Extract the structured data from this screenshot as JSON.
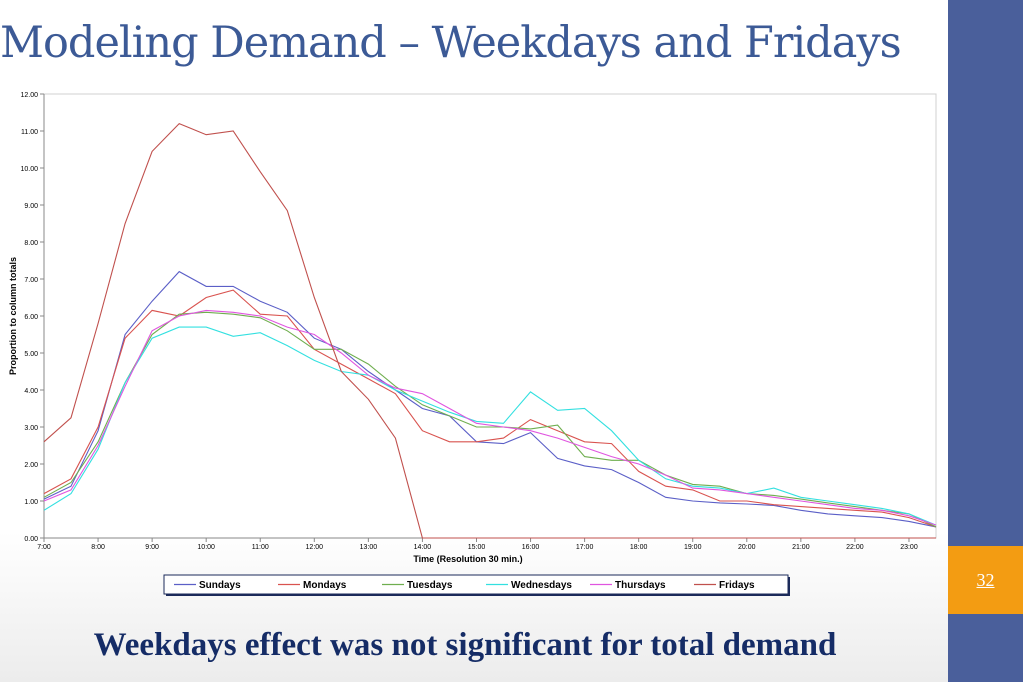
{
  "slide": {
    "title": "Modeling Demand – Weekdays and Fridays",
    "subtitle": "Weekdays effect was not significant for total demand",
    "page_number": "32",
    "colors": {
      "accent_bar": "#4a5f9b",
      "page_box": "#f39c12",
      "title": "#3c5a96",
      "subtitle": "#152c66"
    }
  },
  "chart_data": {
    "type": "line",
    "xlabel": "Time (Resolution  30 min.)",
    "ylabel": "Proportion to column totals",
    "ylim": [
      0,
      12
    ],
    "yticks": [
      "0.00",
      "1.00",
      "2.00",
      "3.00",
      "4.00",
      "5.00",
      "6.00",
      "7.00",
      "8.00",
      "9.00",
      "10.00",
      "11.00",
      "12.00"
    ],
    "xticks": [
      "7:00",
      "8:00",
      "9:00",
      "10:00",
      "11:00",
      "12:00",
      "13:00",
      "14:00",
      "15:00",
      "16:00",
      "17:00",
      "18:00",
      "19:00",
      "20:00",
      "21:00",
      "22:00",
      "23:00"
    ],
    "x": [
      "7:00",
      "7:30",
      "8:00",
      "8:30",
      "9:00",
      "9:30",
      "10:00",
      "10:30",
      "11:00",
      "11:30",
      "12:00",
      "12:30",
      "13:00",
      "13:30",
      "14:00",
      "14:30",
      "15:00",
      "15:30",
      "16:00",
      "16:30",
      "17:00",
      "17:30",
      "18:00",
      "18:30",
      "19:00",
      "19:30",
      "20:00",
      "20:30",
      "21:00",
      "21:30",
      "22:00",
      "22:30",
      "23:00",
      "23:30"
    ],
    "legend_position": "bottom",
    "grid": false,
    "series": [
      {
        "name": "Sundays",
        "color": "#5b5fc7",
        "values": [
          1.05,
          1.4,
          2.9,
          5.5,
          6.4,
          7.2,
          6.8,
          6.8,
          6.4,
          6.1,
          5.4,
          5.1,
          4.5,
          4.0,
          3.5,
          3.3,
          2.6,
          2.55,
          2.85,
          2.15,
          1.95,
          1.85,
          1.5,
          1.1,
          1.0,
          0.95,
          0.92,
          0.88,
          0.75,
          0.65,
          0.6,
          0.55,
          0.45,
          0.3
        ]
      },
      {
        "name": "Mondays",
        "color": "#d9534f",
        "values": [
          1.2,
          1.6,
          3.0,
          5.4,
          6.15,
          6.0,
          6.5,
          6.7,
          6.05,
          6.0,
          5.1,
          4.7,
          4.3,
          3.9,
          2.9,
          2.6,
          2.6,
          2.7,
          3.2,
          2.9,
          2.6,
          2.55,
          1.8,
          1.4,
          1.3,
          1.0,
          1.0,
          0.9,
          0.85,
          0.8,
          0.75,
          0.7,
          0.55,
          0.3
        ]
      },
      {
        "name": "Tuesdays",
        "color": "#6fae4f",
        "values": [
          1.1,
          1.5,
          2.6,
          4.2,
          5.5,
          6.05,
          6.1,
          6.05,
          5.95,
          5.6,
          5.1,
          5.1,
          4.7,
          4.1,
          3.6,
          3.3,
          3.0,
          3.0,
          2.95,
          3.05,
          2.2,
          2.1,
          2.1,
          1.7,
          1.45,
          1.4,
          1.2,
          1.15,
          1.05,
          0.95,
          0.85,
          0.75,
          0.65,
          0.3
        ]
      },
      {
        "name": "Wednesdays",
        "color": "#33e0e0",
        "values": [
          0.75,
          1.2,
          2.4,
          4.2,
          5.4,
          5.7,
          5.7,
          5.45,
          5.55,
          5.2,
          4.8,
          4.5,
          4.4,
          4.0,
          3.7,
          3.4,
          3.15,
          3.1,
          3.95,
          3.45,
          3.5,
          2.9,
          2.1,
          1.6,
          1.4,
          1.35,
          1.2,
          1.35,
          1.1,
          1.0,
          0.9,
          0.8,
          0.65,
          0.35
        ]
      },
      {
        "name": "Thursdays",
        "color": "#e055e0",
        "values": [
          1.0,
          1.3,
          2.5,
          4.1,
          5.6,
          6.0,
          6.15,
          6.1,
          6.0,
          5.7,
          5.5,
          5.0,
          4.4,
          4.05,
          3.9,
          3.5,
          3.1,
          3.0,
          2.9,
          2.7,
          2.45,
          2.2,
          2.0,
          1.7,
          1.35,
          1.3,
          1.2,
          1.1,
          1.0,
          0.9,
          0.8,
          0.75,
          0.6,
          0.35
        ]
      },
      {
        "name": "Fridays",
        "color": "#c0504d",
        "values": [
          2.6,
          3.25,
          5.8,
          8.5,
          10.45,
          11.2,
          10.9,
          11.0,
          9.9,
          8.85,
          6.5,
          4.5,
          3.75,
          2.7,
          0.0,
          0.0,
          0.0,
          0.0,
          0.0,
          0.0,
          0.0,
          0.0,
          0.0,
          0.0,
          0.0,
          0.0,
          0.0,
          0.0,
          0.0,
          0.0,
          0.0,
          0.0,
          0.0,
          0.0
        ]
      }
    ]
  }
}
